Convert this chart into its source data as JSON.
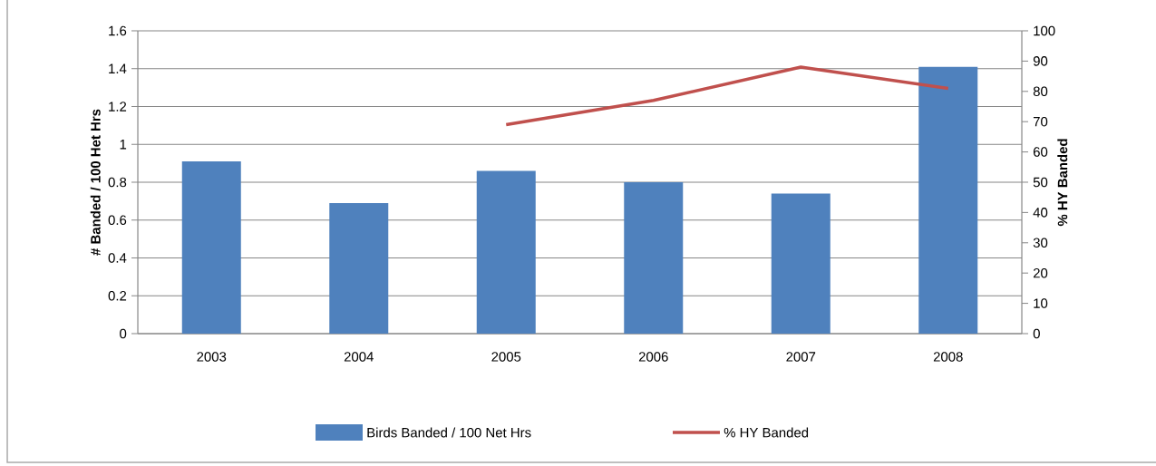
{
  "chart_data": {
    "type": "bar",
    "categories": [
      "2003",
      "2004",
      "2005",
      "2006",
      "2007",
      "2008"
    ],
    "ylabel": "# Banded / 100 Het Hrs",
    "y2label": "% HY Banded",
    "series": [
      {
        "name": "Birds Banded / 100 Net Hrs",
        "color": "#4f81bd",
        "values": [
          0.91,
          0.69,
          0.86,
          0.8,
          0.74,
          1.41
        ]
      },
      {
        "name": "% HY Banded",
        "type": "line",
        "axis": "y2",
        "color": "#c0504d",
        "values": [
          null,
          null,
          69,
          77,
          88,
          81
        ]
      }
    ],
    "ylim": [
      0,
      1.6
    ],
    "yticks": [
      0,
      0.2,
      0.4,
      0.6,
      0.8,
      1,
      1.2,
      1.4,
      1.6
    ],
    "y2lim": [
      0,
      100
    ],
    "y2ticks": [
      0,
      10,
      20,
      30,
      40,
      50,
      60,
      70,
      80,
      90,
      100
    ],
    "grid": "y",
    "legend": "bottom",
    "marker": "none"
  }
}
